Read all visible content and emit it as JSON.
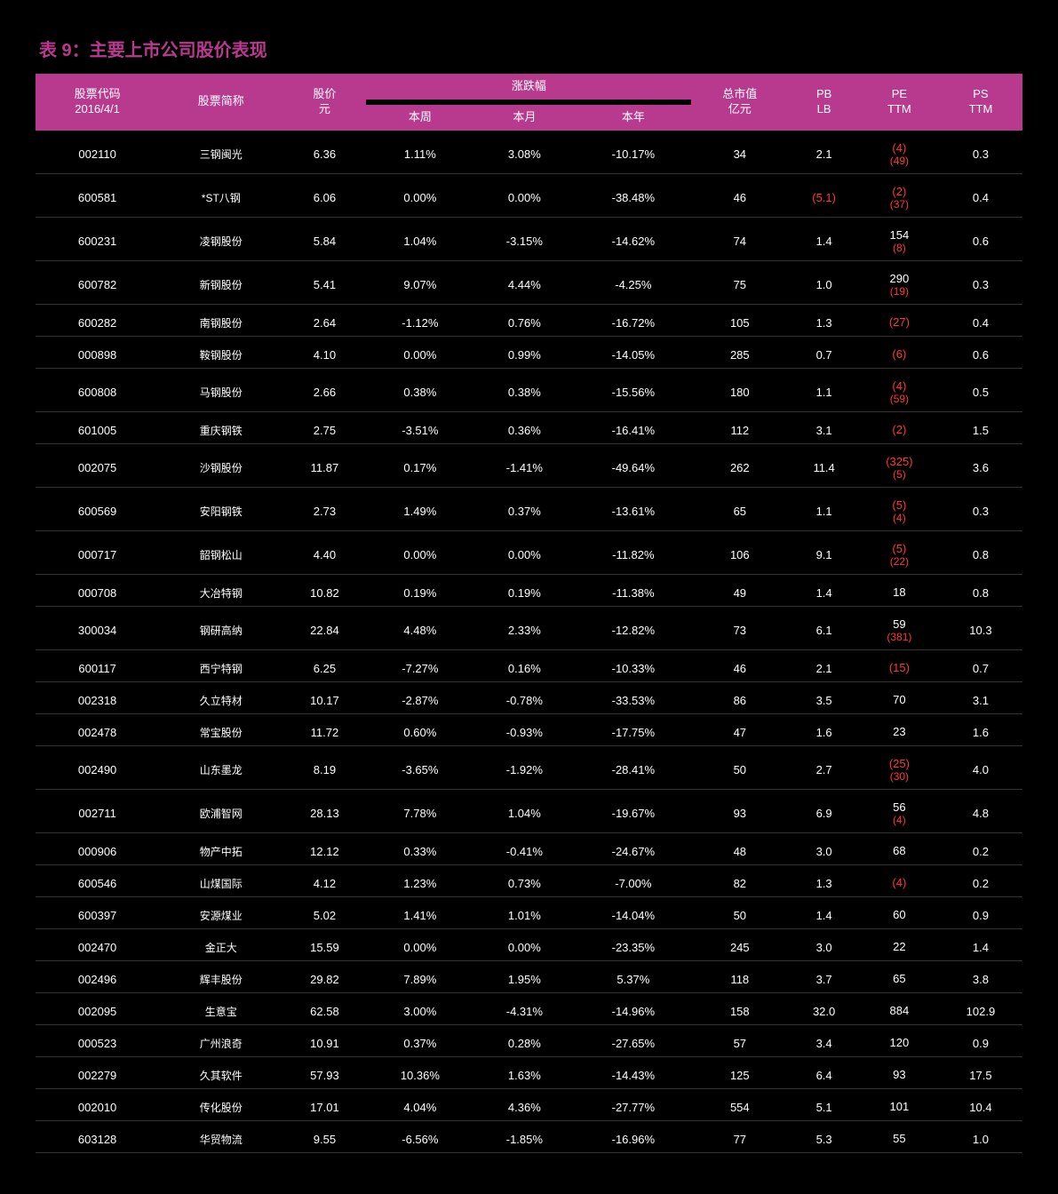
{
  "title": "表 9：主要上市公司股价表现",
  "headers": {
    "code": "股票代码\n2016/4/1",
    "name": "股票简称",
    "price": "股价\n元",
    "change_group": "涨跌幅",
    "change_week": "本周",
    "change_month": "本月",
    "change_year": "本年",
    "mktcap": "总市值\n亿元",
    "pb": "PB\nLB",
    "pe": "PE\nTTM",
    "ps": "PS\nTTM"
  },
  "colors": {
    "header_bg": "#b83a8e",
    "title_color": "#b83a8e",
    "bg": "#000000",
    "text": "#ffffff",
    "negative": "#ff3838"
  },
  "rows": [
    {
      "code": "002110",
      "name": "三钢闽光",
      "price": "6.36",
      "week": "1.11%",
      "month": "3.08%",
      "year": "-10.17%",
      "mktcap": "34",
      "pb": "2.1",
      "pe_extra_top": "",
      "pe": "(4)",
      "pe_neg": true,
      "pe_extra": "(49)",
      "ps": "0.3"
    },
    {
      "code": "600581",
      "name": "*ST八钢",
      "price": "6.06",
      "week": "0.00%",
      "month": "0.00%",
      "year": "-38.48%",
      "mktcap": "46",
      "pb": "(5.1)",
      "pb_neg": true,
      "pe": "(2)",
      "pe_neg": true,
      "pe_extra": "(37)",
      "ps": "0.4"
    },
    {
      "code": "600231",
      "name": "凌钢股份",
      "price": "5.84",
      "week": "1.04%",
      "month": "-3.15%",
      "year": "-14.62%",
      "mktcap": "74",
      "pb": "1.4",
      "pe": "154",
      "pe_extra": "(8)",
      "ps": "0.6"
    },
    {
      "code": "600782",
      "name": "新钢股份",
      "price": "5.41",
      "week": "9.07%",
      "month": "4.44%",
      "year": "-4.25%",
      "mktcap": "75",
      "pb": "1.0",
      "pe": "290",
      "pe_extra": "(19)",
      "ps": "0.3"
    },
    {
      "code": "600282",
      "name": "南钢股份",
      "price": "2.64",
      "week": "-1.12%",
      "month": "0.76%",
      "year": "-16.72%",
      "mktcap": "105",
      "pb": "1.3",
      "pe": "(27)",
      "pe_neg": true,
      "ps": "0.4"
    },
    {
      "code": "000898",
      "name": "鞍钢股份",
      "price": "4.10",
      "week": "0.00%",
      "month": "0.99%",
      "year": "-14.05%",
      "mktcap": "285",
      "pb": "0.7",
      "pe": "(6)",
      "pe_neg": true,
      "ps": "0.6"
    },
    {
      "code": "600808",
      "name": "马钢股份",
      "price": "2.66",
      "week": "0.38%",
      "month": "0.38%",
      "year": "-15.56%",
      "mktcap": "180",
      "pb": "1.1",
      "pe": "(4)",
      "pe_neg": true,
      "pe_extra": "(59)",
      "ps": "0.5"
    },
    {
      "code": "601005",
      "name": "重庆钢铁",
      "price": "2.75",
      "week": "-3.51%",
      "month": "0.36%",
      "year": "-16.41%",
      "mktcap": "112",
      "pb": "3.1",
      "pe": "(2)",
      "pe_neg": true,
      "ps": "1.5"
    },
    {
      "code": "002075",
      "name": "沙钢股份",
      "price": "11.87",
      "week": "0.17%",
      "month": "-1.41%",
      "year": "-49.64%",
      "mktcap": "262",
      "pb": "11.4",
      "pe": "(325)",
      "pe_neg": true,
      "pe_extra": "(5)",
      "ps": "3.6"
    },
    {
      "code": "600569",
      "name": "安阳钢铁",
      "price": "2.73",
      "week": "1.49%",
      "month": "0.37%",
      "year": "-13.61%",
      "mktcap": "65",
      "pb": "1.1",
      "pe": "(5)",
      "pe_neg": true,
      "pe_extra": "(4)",
      "ps": "0.3"
    },
    {
      "code": "000717",
      "name": "韶钢松山",
      "price": "4.40",
      "week": "0.00%",
      "month": "0.00%",
      "year": "-11.82%",
      "mktcap": "106",
      "pb": "9.1",
      "pe": "(5)",
      "pe_neg": true,
      "pe_extra": "(22)",
      "ps": "0.8"
    },
    {
      "code": "000708",
      "name": "大冶特钢",
      "price": "10.82",
      "week": "0.19%",
      "month": "0.19%",
      "year": "-11.38%",
      "mktcap": "49",
      "pb": "1.4",
      "pe": "18",
      "ps": "0.8"
    },
    {
      "code": "300034",
      "name": "钢研高纳",
      "price": "22.84",
      "week": "4.48%",
      "month": "2.33%",
      "year": "-12.82%",
      "mktcap": "73",
      "pb": "6.1",
      "pe": "59",
      "pe_extra": "(381)",
      "ps": "10.3"
    },
    {
      "code": "600117",
      "name": "西宁特钢",
      "price": "6.25",
      "week": "-7.27%",
      "month": "0.16%",
      "year": "-10.33%",
      "mktcap": "46",
      "pb": "2.1",
      "pe": "(15)",
      "pe_neg": true,
      "ps": "0.7"
    },
    {
      "code": "002318",
      "name": "久立特材",
      "price": "10.17",
      "week": "-2.87%",
      "month": "-0.78%",
      "year": "-33.53%",
      "mktcap": "86",
      "pb": "3.5",
      "pe": "70",
      "ps": "3.1"
    },
    {
      "code": "002478",
      "name": "常宝股份",
      "price": "11.72",
      "week": "0.60%",
      "month": "-0.93%",
      "year": "-17.75%",
      "mktcap": "47",
      "pb": "1.6",
      "pe": "23",
      "ps": "1.6"
    },
    {
      "code": "002490",
      "name": "山东墨龙",
      "price": "8.19",
      "week": "-3.65%",
      "month": "-1.92%",
      "year": "-28.41%",
      "mktcap": "50",
      "pb": "2.7",
      "pe": "(25)",
      "pe_neg": true,
      "pe_extra": "(30)",
      "ps": "4.0"
    },
    {
      "code": "002711",
      "name": "欧浦智网",
      "price": "28.13",
      "week": "7.78%",
      "month": "1.04%",
      "year": "-19.67%",
      "mktcap": "93",
      "pb": "6.9",
      "pe": "56",
      "pe_extra": "(4)",
      "ps": "4.8"
    },
    {
      "code": "000906",
      "name": "物产中拓",
      "price": "12.12",
      "week": "0.33%",
      "month": "-0.41%",
      "year": "-24.67%",
      "mktcap": "48",
      "pb": "3.0",
      "pe": "68",
      "ps": "0.2"
    },
    {
      "code": "600546",
      "name": "山煤国际",
      "price": "4.12",
      "week": "1.23%",
      "month": "0.73%",
      "year": "-7.00%",
      "mktcap": "82",
      "pb": "1.3",
      "pe": "(4)",
      "pe_neg": true,
      "ps": "0.2"
    },
    {
      "code": "600397",
      "name": "安源煤业",
      "price": "5.02",
      "week": "1.41%",
      "month": "1.01%",
      "year": "-14.04%",
      "mktcap": "50",
      "pb": "1.4",
      "pe": "60",
      "ps": "0.9"
    },
    {
      "code": "002470",
      "name": "金正大",
      "price": "15.59",
      "week": "0.00%",
      "month": "0.00%",
      "year": "-23.35%",
      "mktcap": "245",
      "pb": "3.0",
      "pe": "22",
      "ps": "1.4"
    },
    {
      "code": "002496",
      "name": "辉丰股份",
      "price": "29.82",
      "week": "7.89%",
      "month": "1.95%",
      "year": "5.37%",
      "mktcap": "118",
      "pb": "3.7",
      "pe": "65",
      "ps": "3.8"
    },
    {
      "code": "002095",
      "name": "生意宝",
      "price": "62.58",
      "week": "3.00%",
      "month": "-4.31%",
      "year": "-14.96%",
      "mktcap": "158",
      "pb": "32.0",
      "pe": "884",
      "ps": "102.9"
    },
    {
      "code": "000523",
      "name": "广州浪奇",
      "price": "10.91",
      "week": "0.37%",
      "month": "0.28%",
      "year": "-27.65%",
      "mktcap": "57",
      "pb": "3.4",
      "pe": "120",
      "ps": "0.9"
    },
    {
      "code": "002279",
      "name": "久其软件",
      "price": "57.93",
      "week": "10.36%",
      "month": "1.63%",
      "year": "-14.43%",
      "mktcap": "125",
      "pb": "6.4",
      "pe": "93",
      "ps": "17.5"
    },
    {
      "code": "002010",
      "name": "传化股份",
      "price": "17.01",
      "week": "4.04%",
      "month": "4.36%",
      "year": "-27.77%",
      "mktcap": "554",
      "pb": "5.1",
      "pe": "101",
      "ps": "10.4"
    },
    {
      "code": "603128",
      "name": "华贸物流",
      "price": "9.55",
      "week": "-6.56%",
      "month": "-1.85%",
      "year": "-16.96%",
      "mktcap": "77",
      "pb": "5.3",
      "pe": "55",
      "ps": "1.0"
    }
  ]
}
